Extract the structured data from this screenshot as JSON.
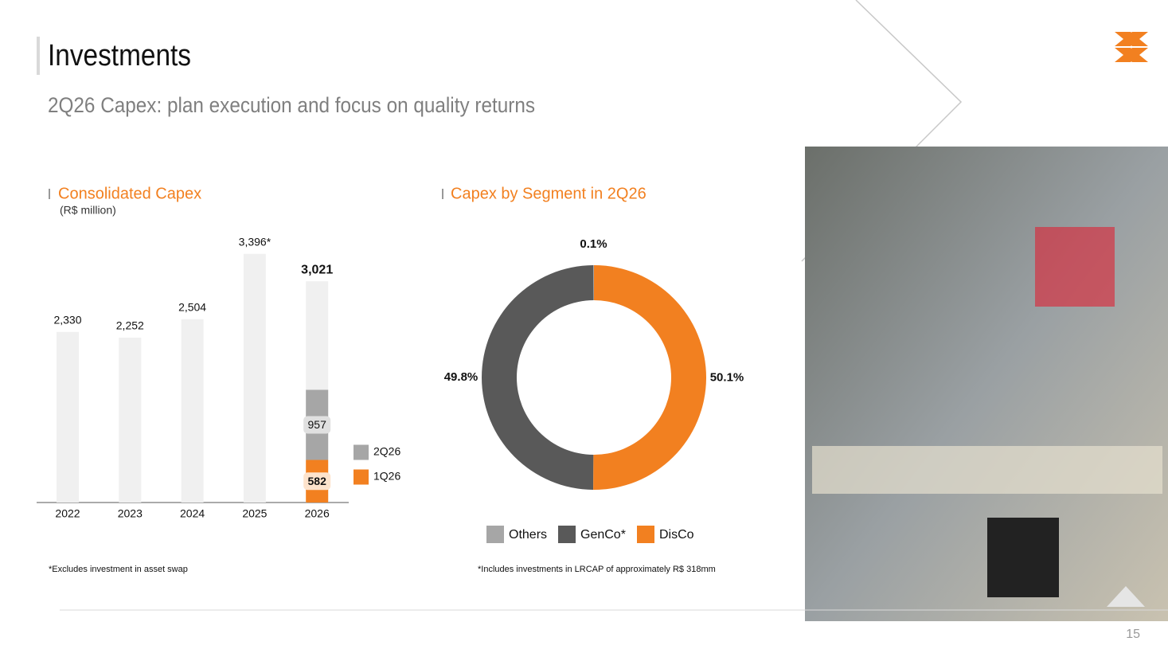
{
  "header": {
    "title": "Investments",
    "subtitle": "2Q26 Capex: plan execution and focus on quality returns"
  },
  "chart_data": [
    {
      "type": "bar",
      "title": "Consolidated Capex",
      "subtitle": "(R$ million)",
      "categories": [
        "2022",
        "2023",
        "2024",
        "2025",
        "2026"
      ],
      "values": [
        2330,
        2252,
        2504,
        3396,
        3021
      ],
      "value_labels": [
        "2,330",
        "2,252",
        "2,504",
        "3,396*",
        "3,021"
      ],
      "color": "#f0f0f0",
      "stack_series": [
        {
          "name": "1Q26",
          "color": "#f28020",
          "values": [
            null,
            null,
            null,
            null,
            582
          ]
        },
        {
          "name": "2Q26",
          "color": "#a6a6a6",
          "values": [
            null,
            null,
            null,
            null,
            957
          ]
        }
      ],
      "footnote": "*Excludes investment in asset swap"
    },
    {
      "type": "donut",
      "title": "Capex by Segment in 2Q26",
      "categories": [
        "Others",
        "GenCo*",
        "DisCo"
      ],
      "values": [
        0.1,
        49.8,
        50.1
      ],
      "value_labels": [
        "0.1%",
        "49.8%",
        "50.1%"
      ],
      "colors": [
        "#a6a6a6",
        "#595959",
        "#f28020"
      ],
      "footnote": "*Includes investments in LRCAP of approximately R$ 318mm"
    }
  ],
  "footer": {
    "page": "15"
  }
}
